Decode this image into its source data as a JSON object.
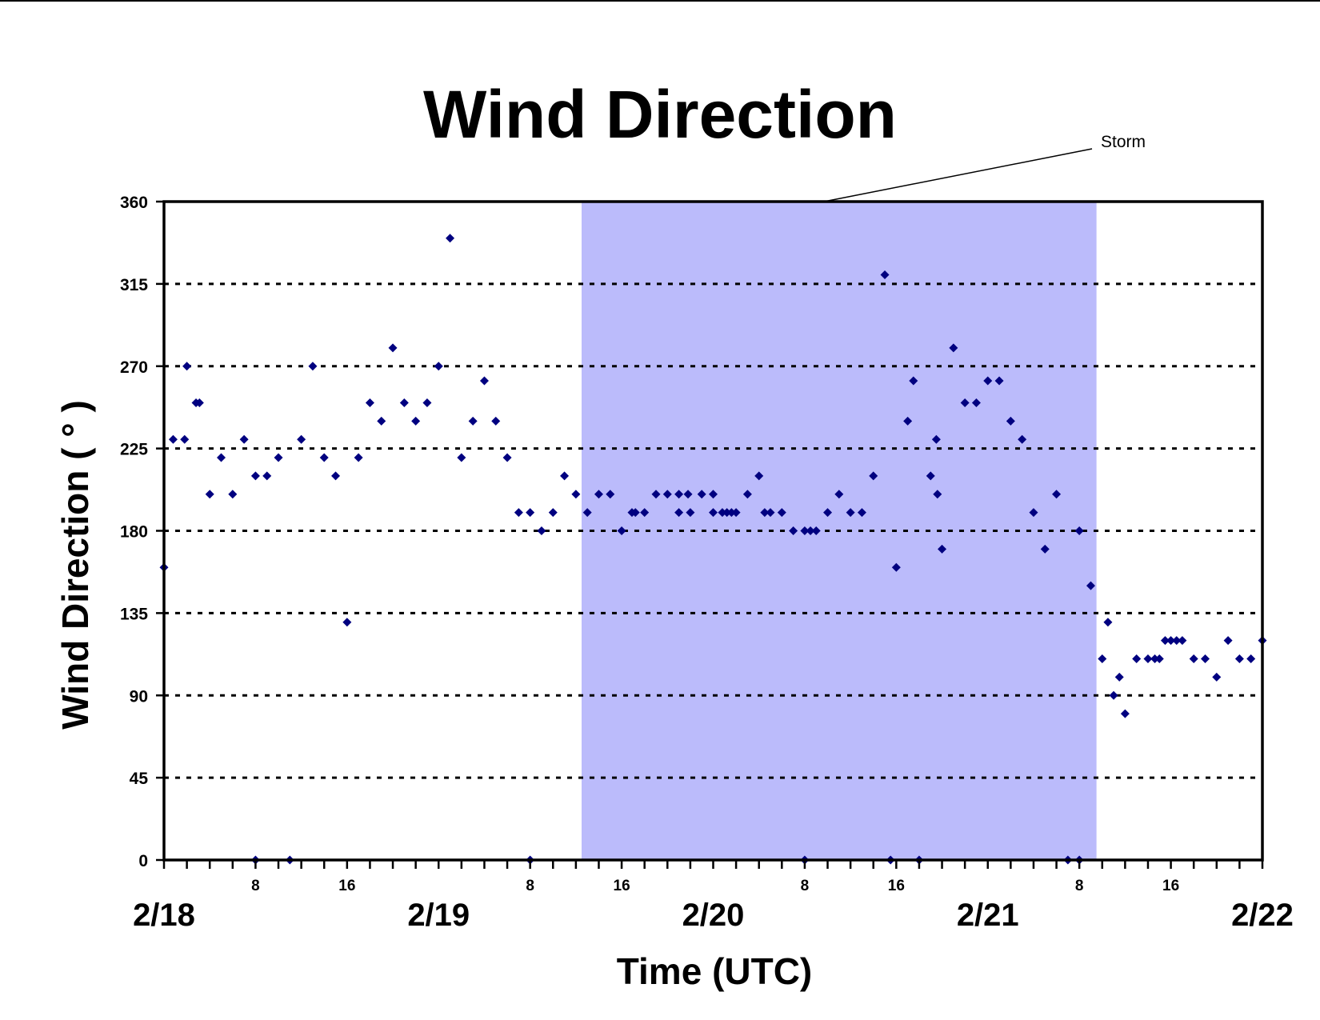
{
  "chart_data": {
    "type": "scatter",
    "title": "Wind Direction",
    "xlabel": "Time (UTC)",
    "ylabel": "Wind Direction ( ° )",
    "ylim": [
      0,
      360
    ],
    "yticks": [
      "0",
      "45",
      "90",
      "135",
      "180",
      "225",
      "270",
      "315",
      "360"
    ],
    "x_unit": "hours since 2/18 00 UTC",
    "xlim": [
      0,
      96
    ],
    "date_labels": [
      {
        "text": "2/18",
        "hour": 0
      },
      {
        "text": "2/19",
        "hour": 24
      },
      {
        "text": "2/20",
        "hour": 48
      },
      {
        "text": "2/21",
        "hour": 72
      },
      {
        "text": "2/22",
        "hour": 96
      }
    ],
    "hour_labels": [
      {
        "text": "8",
        "hour": 8
      },
      {
        "text": "16",
        "hour": 16
      },
      {
        "text": "8",
        "hour": 32
      },
      {
        "text": "16",
        "hour": 40
      },
      {
        "text": "8",
        "hour": 56
      },
      {
        "text": "16",
        "hour": 64
      },
      {
        "text": "8",
        "hour": 80
      },
      {
        "text": "16",
        "hour": 88
      }
    ],
    "grid": "horizontal dotted",
    "marker_color": "#000080",
    "shaded_region": {
      "label": "Storm",
      "x_start": 36.5,
      "x_end": 81.5,
      "color": "#BBBBFB"
    },
    "points": [
      [
        0,
        160
      ],
      [
        0.8,
        230
      ],
      [
        1.8,
        230
      ],
      [
        2,
        270
      ],
      [
        2.8,
        250
      ],
      [
        3.1,
        250
      ],
      [
        4,
        200
      ],
      [
        5,
        220
      ],
      [
        6,
        200
      ],
      [
        7,
        230
      ],
      [
        8,
        210
      ],
      [
        8,
        0
      ],
      [
        9,
        210
      ],
      [
        10,
        220
      ],
      [
        11,
        0
      ],
      [
        12,
        230
      ],
      [
        13,
        270
      ],
      [
        14,
        220
      ],
      [
        15,
        210
      ],
      [
        16,
        130
      ],
      [
        17,
        220
      ],
      [
        18,
        250
      ],
      [
        19,
        240
      ],
      [
        20,
        280
      ],
      [
        21,
        250
      ],
      [
        22,
        240
      ],
      [
        23,
        250
      ],
      [
        24,
        270
      ],
      [
        25,
        340
      ],
      [
        26,
        220
      ],
      [
        27,
        240
      ],
      [
        28,
        262
      ],
      [
        29,
        240
      ],
      [
        30,
        220
      ],
      [
        31,
        190
      ],
      [
        32,
        190
      ],
      [
        32,
        0
      ],
      [
        33,
        180
      ],
      [
        34,
        190
      ],
      [
        35,
        210
      ],
      [
        36,
        200
      ],
      [
        37,
        190
      ],
      [
        38,
        200
      ],
      [
        39,
        200
      ],
      [
        40,
        180
      ],
      [
        40.9,
        190
      ],
      [
        41.2,
        190
      ],
      [
        42,
        190
      ],
      [
        43,
        200
      ],
      [
        44,
        200
      ],
      [
        45,
        200
      ],
      [
        45,
        190
      ],
      [
        45.8,
        200
      ],
      [
        46,
        190
      ],
      [
        47,
        200
      ],
      [
        48,
        200
      ],
      [
        48,
        190
      ],
      [
        48.8,
        190
      ],
      [
        49.2,
        190
      ],
      [
        49.6,
        190
      ],
      [
        50,
        190
      ],
      [
        51,
        200
      ],
      [
        52,
        210
      ],
      [
        52.5,
        190
      ],
      [
        53,
        190
      ],
      [
        54,
        190
      ],
      [
        55,
        180
      ],
      [
        56,
        180
      ],
      [
        56,
        0
      ],
      [
        56.5,
        180
      ],
      [
        57,
        180
      ],
      [
        58,
        190
      ],
      [
        59,
        200
      ],
      [
        60,
        190
      ],
      [
        61,
        190
      ],
      [
        62,
        210
      ],
      [
        63,
        320
      ],
      [
        63.5,
        0
      ],
      [
        64,
        160
      ],
      [
        65,
        240
      ],
      [
        65.5,
        262
      ],
      [
        66,
        0
      ],
      [
        67,
        210
      ],
      [
        67.5,
        230
      ],
      [
        67.6,
        200
      ],
      [
        68,
        170
      ],
      [
        69,
        280
      ],
      [
        70,
        250
      ],
      [
        71,
        250
      ],
      [
        72,
        262
      ],
      [
        73,
        262
      ],
      [
        74,
        240
      ],
      [
        75,
        230
      ],
      [
        76,
        190
      ],
      [
        77,
        170
      ],
      [
        78,
        200
      ],
      [
        79,
        0
      ],
      [
        80,
        180
      ],
      [
        80,
        0
      ],
      [
        81,
        150
      ],
      [
        82,
        110
      ],
      [
        82.5,
        130
      ],
      [
        83,
        90
      ],
      [
        83.5,
        100
      ],
      [
        84,
        80
      ],
      [
        85,
        110
      ],
      [
        86,
        110
      ],
      [
        86.6,
        110
      ],
      [
        87,
        110
      ],
      [
        87.5,
        120
      ],
      [
        88,
        120
      ],
      [
        88.5,
        120
      ],
      [
        89,
        120
      ],
      [
        90,
        110
      ],
      [
        91,
        110
      ],
      [
        92,
        100
      ],
      [
        93,
        120
      ],
      [
        94,
        110
      ],
      [
        95,
        110
      ],
      [
        96,
        120
      ]
    ]
  }
}
